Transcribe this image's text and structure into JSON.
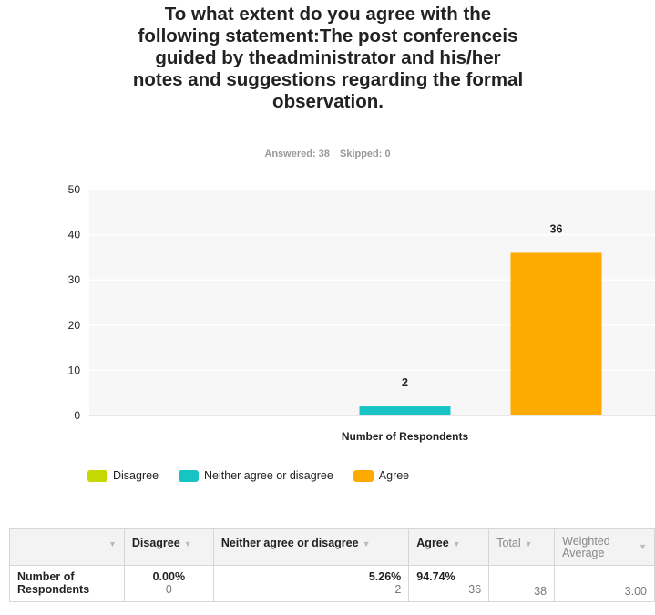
{
  "title_lines": [
    "To what extent do you agree with the",
    "following statement:The post conferenceis",
    "guided by theadministrator and his/her",
    "notes and suggestions regarding the formal",
    "observation."
  ],
  "meta": {
    "answered": "Answered: 38",
    "skipped": "Skipped: 0"
  },
  "chart_data": {
    "type": "bar",
    "categories": [
      "Number of Respondents"
    ],
    "series": [
      {
        "name": "Disagree",
        "values": [
          0
        ],
        "color": "#c5d900"
      },
      {
        "name": "Neither agree or disagree",
        "values": [
          2
        ],
        "color": "#18c3c3"
      },
      {
        "name": "Agree",
        "values": [
          36
        ],
        "color": "#ffaa00"
      }
    ],
    "data_labels": [
      "",
      "2",
      "36"
    ],
    "xlabel": "Number of Respondents",
    "ylim": [
      0,
      50
    ],
    "yticks": [
      0,
      10,
      20,
      30,
      40,
      50
    ],
    "grid": true,
    "legend_position": "bottom"
  },
  "table": {
    "headers": [
      "",
      "Disagree",
      "Neither agree or disagree",
      "Agree",
      "Total",
      "Weighted Average"
    ],
    "row_label_line1": "Number of",
    "row_label_line2": "Respondents",
    "cells": [
      {
        "pct": "0.00%",
        "count": "0"
      },
      {
        "pct": "5.26%",
        "count": "2"
      },
      {
        "pct": "94.74%",
        "count": "36"
      }
    ],
    "total": "38",
    "weighted_average": "3.00",
    "weighted_line1": "Weighted",
    "weighted_line2": "Average"
  }
}
